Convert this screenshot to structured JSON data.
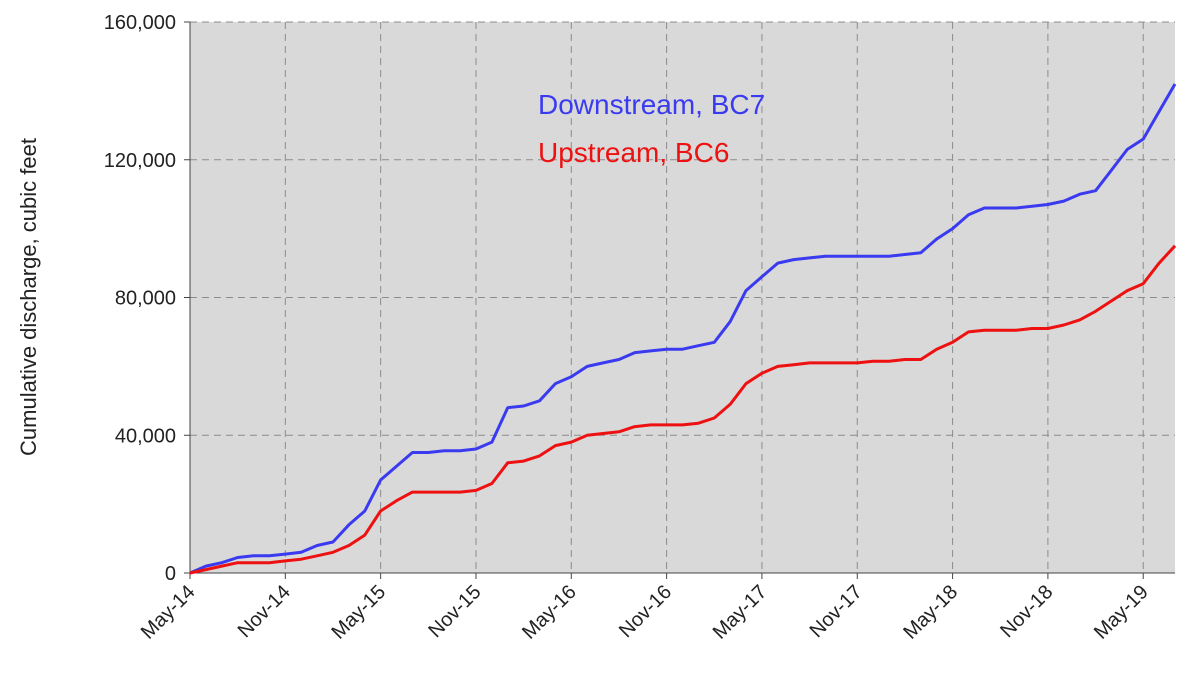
{
  "chart_data": {
    "type": "line",
    "y_label": "Cumulative discharge, cubic feet",
    "x": [
      "2014-05",
      "2014-06",
      "2014-07",
      "2014-08",
      "2014-09",
      "2014-10",
      "2014-11",
      "2014-12",
      "2015-01",
      "2015-02",
      "2015-03",
      "2015-04",
      "2015-05",
      "2015-06",
      "2015-07",
      "2015-08",
      "2015-09",
      "2015-10",
      "2015-11",
      "2015-12",
      "2016-01",
      "2016-02",
      "2016-03",
      "2016-04",
      "2016-05",
      "2016-06",
      "2016-07",
      "2016-08",
      "2016-09",
      "2016-10",
      "2016-11",
      "2016-12",
      "2017-01",
      "2017-02",
      "2017-03",
      "2017-04",
      "2017-05",
      "2017-06",
      "2017-07",
      "2017-08",
      "2017-09",
      "2017-10",
      "2017-11",
      "2017-12",
      "2018-01",
      "2018-02",
      "2018-03",
      "2018-04",
      "2018-05",
      "2018-06",
      "2018-07",
      "2018-08",
      "2018-09",
      "2018-10",
      "2018-11",
      "2018-12",
      "2019-01",
      "2019-02",
      "2019-03",
      "2019-04",
      "2019-05",
      "2019-06",
      "2019-07"
    ],
    "series": [
      {
        "name": "Downstream, BC7",
        "color": "#3a3af0",
        "values": [
          0,
          2000,
          3000,
          4500,
          5000,
          5000,
          5500,
          6000,
          8000,
          9000,
          14000,
          18000,
          27000,
          31000,
          35000,
          35000,
          35500,
          35500,
          36000,
          38000,
          48000,
          48500,
          50000,
          55000,
          57000,
          60000,
          61000,
          62000,
          64000,
          64500,
          65000,
          65000,
          66000,
          67000,
          73000,
          82000,
          86000,
          90000,
          91000,
          91500,
          92000,
          92000,
          92000,
          92000,
          92000,
          92500,
          93000,
          97000,
          100000,
          104000,
          106000,
          106000,
          106000,
          106500,
          107000,
          108000,
          110000,
          111000,
          117000,
          123000,
          126000,
          134000,
          142000
        ]
      },
      {
        "name": "Upstream, BC6",
        "color": "#ee1111",
        "values": [
          0,
          1000,
          2000,
          3000,
          3000,
          3000,
          3500,
          4000,
          5000,
          6000,
          8000,
          11000,
          18000,
          21000,
          23500,
          23500,
          23500,
          23500,
          24000,
          26000,
          32000,
          32500,
          34000,
          37000,
          38000,
          40000,
          40500,
          41000,
          42500,
          43000,
          43000,
          43000,
          43500,
          45000,
          49000,
          55000,
          58000,
          60000,
          60500,
          61000,
          61000,
          61000,
          61000,
          61500,
          61500,
          62000,
          62000,
          65000,
          67000,
          70000,
          70500,
          70500,
          70500,
          71000,
          71000,
          72000,
          73500,
          76000,
          79000,
          82000,
          84000,
          90000,
          95000
        ]
      }
    ],
    "xlim": [
      "2014-05",
      "2019-07"
    ],
    "xticks": [
      {
        "value": "2014-05",
        "label": "May-14"
      },
      {
        "value": "2014-11",
        "label": "Nov-14"
      },
      {
        "value": "2015-05",
        "label": "May-15"
      },
      {
        "value": "2015-11",
        "label": "Nov-15"
      },
      {
        "value": "2016-05",
        "label": "May-16"
      },
      {
        "value": "2016-11",
        "label": "Nov-16"
      },
      {
        "value": "2017-05",
        "label": "May-17"
      },
      {
        "value": "2017-11",
        "label": "Nov-17"
      },
      {
        "value": "2018-05",
        "label": "May-18"
      },
      {
        "value": "2018-11",
        "label": "Nov-18"
      },
      {
        "value": "2019-05",
        "label": "May-19"
      }
    ],
    "ylim": [
      0,
      160000
    ],
    "yticks": [
      0,
      {
        "value": 40000,
        "label": "40,000"
      },
      {
        "value": 80000,
        "label": "80,000"
      },
      {
        "value": 120000,
        "label": "120,000"
      },
      {
        "value": 160000,
        "label": "160,000"
      }
    ],
    "grid": true,
    "plot_background": "#d9d9d9"
  }
}
